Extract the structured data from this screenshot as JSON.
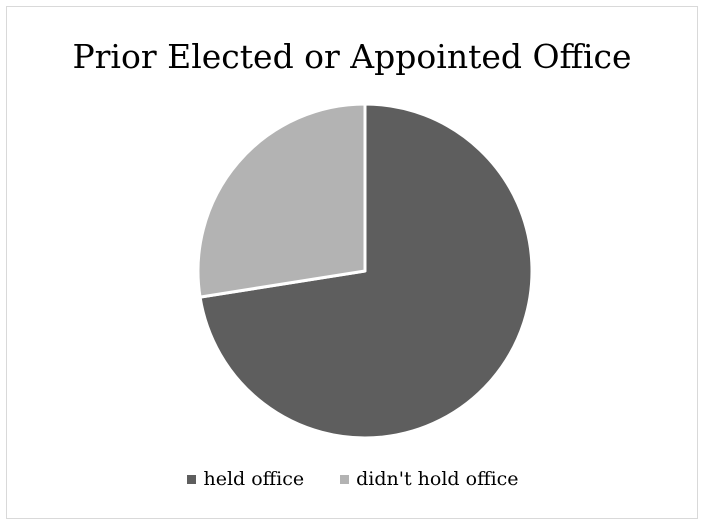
{
  "chart_data": {
    "type": "pie",
    "title": "Prior Elected or Appointed Office",
    "categories": [
      "held office",
      "didn't hold office"
    ],
    "values": [
      72.5,
      27.5
    ],
    "colors": [
      "#5e5e5e",
      "#b3b3b3"
    ],
    "legend_position": "bottom"
  }
}
